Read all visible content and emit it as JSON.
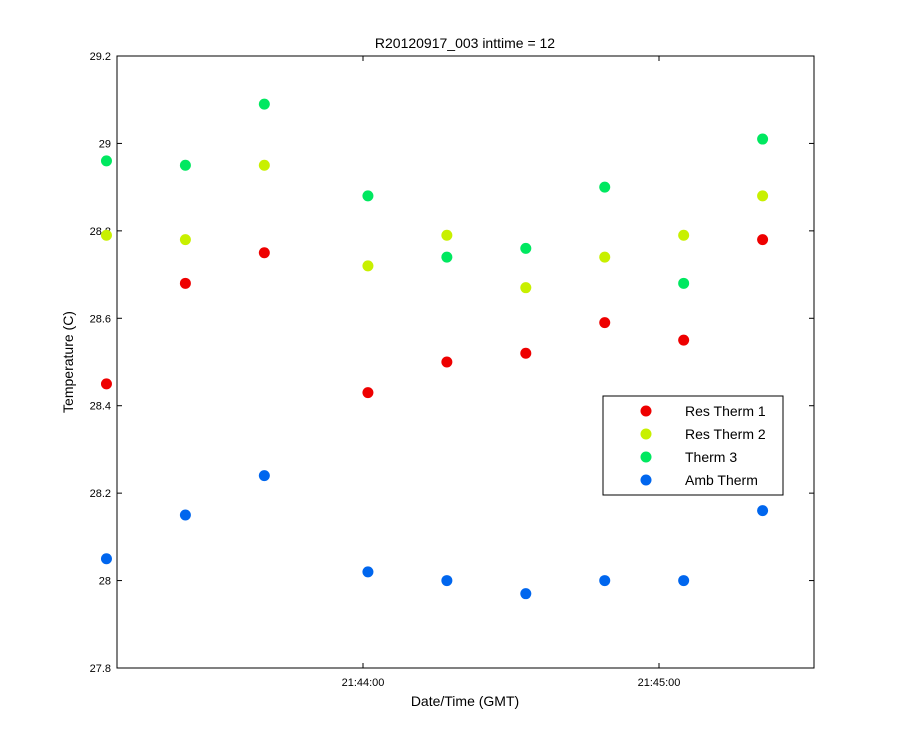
{
  "chart_data": {
    "type": "scatter",
    "title": "R20120917_003 inttime = 12",
    "xlabel": "Date/Time (GMT)",
    "ylabel": "Temperature (C)",
    "x_ticks": [
      "21:44:00",
      "21:45:00"
    ],
    "x_points": [
      "21:43:08",
      "21:43:24",
      "21:43:40",
      "21:44:01",
      "21:44:17",
      "21:44:33",
      "21:44:49",
      "21:45:05",
      "21:45:21"
    ],
    "y_ticks": [
      27.8,
      28,
      28.2,
      28.4,
      28.6,
      28.8,
      29,
      29.2
    ],
    "ylim": [
      27.8,
      29.2
    ],
    "legend_position": "right",
    "series": [
      {
        "name": "Res Therm 1",
        "color": "#ee0000",
        "values": [
          28.45,
          28.68,
          28.75,
          28.43,
          28.5,
          28.52,
          28.59,
          28.55,
          28.78
        ]
      },
      {
        "name": "Res Therm 2",
        "color": "#c8f000",
        "values": [
          28.79,
          28.78,
          28.95,
          28.72,
          28.79,
          28.67,
          28.74,
          28.79,
          28.88
        ]
      },
      {
        "name": "Therm 3",
        "color": "#00e860",
        "values": [
          28.96,
          28.95,
          29.09,
          28.88,
          28.74,
          28.76,
          28.9,
          28.68,
          29.01
        ]
      },
      {
        "name": "Amb Therm",
        "color": "#0066ee",
        "values": [
          28.05,
          28.15,
          28.24,
          28.02,
          28.0,
          27.97,
          28.0,
          28.0,
          28.16
        ]
      }
    ]
  }
}
